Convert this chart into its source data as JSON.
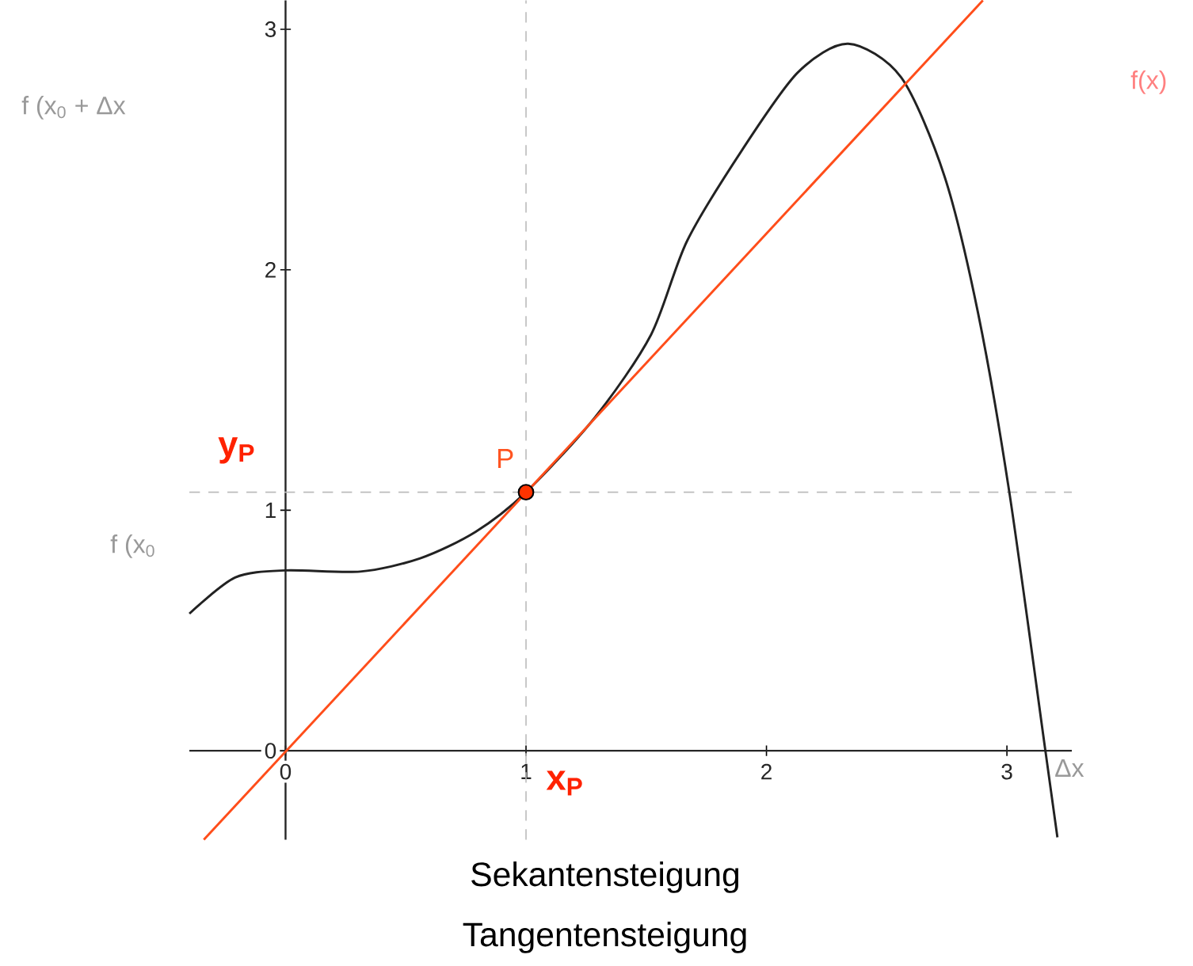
{
  "chart_data": {
    "type": "line",
    "xlim": [
      -0.4,
      3.27
    ],
    "ylim": [
      -0.37,
      3.12
    ],
    "xticks": [
      0,
      1,
      2,
      3
    ],
    "yticks": [
      0,
      1,
      2,
      3
    ],
    "series": [
      {
        "color": "#222222",
        "x": [
          -0.4,
          -0.21,
          0,
          0.31,
          0.56,
          0.79,
          1.0,
          1.29,
          1.52,
          1.67,
          1.9,
          2.13,
          2.34,
          2.56,
          2.74,
          2.88,
          3.01,
          3.16,
          3.21
        ],
        "values": [
          0.57,
          0.72,
          0.75,
          0.745,
          0.8,
          0.91,
          1.075,
          1.39,
          1.73,
          2.12,
          2.5,
          2.82,
          2.94,
          2.8,
          2.39,
          1.82,
          1.075,
          0,
          -0.36
        ]
      },
      {
        "color": "#ff4d1a",
        "x": [
          -0.34,
          2.9
        ],
        "values": [
          -0.37,
          3.12
        ]
      },
      {
        "type": "scatter",
        "marker": "circle",
        "color": "#ff3300",
        "x": [
          1
        ],
        "values": [
          1.075
        ]
      }
    ],
    "ref_lines": [
      {
        "axis": "x",
        "value": 1,
        "label": "x$_{P}$",
        "color": "#bbbbbb",
        "line_style": "dashed"
      },
      {
        "axis": "y",
        "value": 1.075,
        "label": "y$_{P}$",
        "color": "#bbbbbb",
        "line_style": "dashed"
      }
    ],
    "annotations": [
      {
        "text": "P",
        "x": 1,
        "y": 1.075
      },
      "f (x$_{0}$ + Δx",
      "f (x$_{0}$",
      "f(x)",
      "Δx",
      "Sekantensteigung",
      "Tangentensteigung"
    ]
  }
}
